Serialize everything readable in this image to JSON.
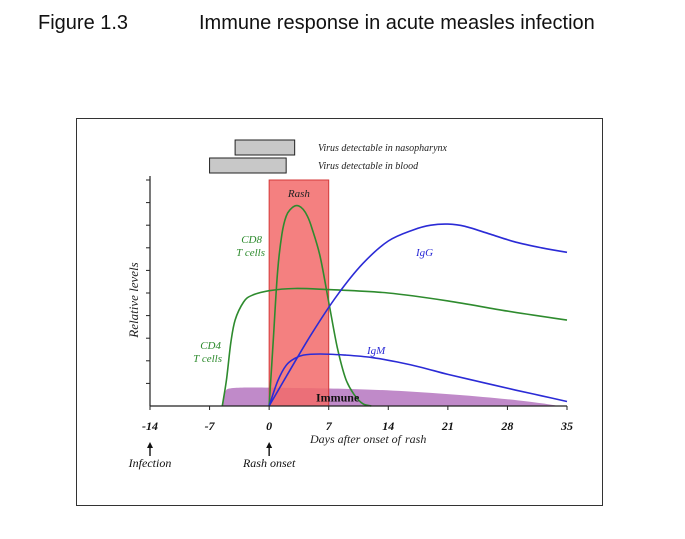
{
  "figure": {
    "number": "Figure 1.3",
    "title": "Immune response in acute measles infection"
  },
  "chart_data": {
    "type": "line",
    "xlabel_prefix": "Days after onset of",
    "xlabel_suffix": "rash",
    "ylabel": "Relative levels",
    "xlim": [
      -14,
      35
    ],
    "ylim": [
      0,
      10
    ],
    "x_ticks": [
      "-14",
      "-7",
      "0",
      "7",
      "14",
      "21",
      "28",
      "35"
    ],
    "x_tick_values": [
      -14,
      -7,
      0,
      7,
      14,
      21,
      28,
      35
    ],
    "y_tick_count": 10,
    "colors": {
      "green": "#2e8b2e",
      "blue": "#2b2bd6",
      "rash_fill": "#f26a6a",
      "rash_stroke": "#d43a3a",
      "immune_fill": "#c08ac9",
      "bar_fill": "#c8c8c8",
      "axis": "#222222"
    },
    "bars": [
      {
        "label": "Virus detectable in nasopharynx",
        "start": -4,
        "end": 3
      },
      {
        "label": "Virus detectable in blood",
        "start": -7,
        "end": 2
      }
    ],
    "rash_band": {
      "label": "Rash",
      "start": 0,
      "end": 7
    },
    "immune_band": {
      "label": "Immune",
      "points": [
        [
          -5.5,
          0
        ],
        [
          -5.2,
          0.6
        ],
        [
          -4,
          0.8
        ],
        [
          2,
          0.8
        ],
        [
          10,
          0.75
        ],
        [
          16,
          0.65
        ],
        [
          22,
          0.5
        ],
        [
          28,
          0.3
        ],
        [
          32,
          0.12
        ],
        [
          34,
          0
        ]
      ]
    },
    "series": [
      {
        "name": "CD8 T cells",
        "label_line1": "CD8",
        "label_line2": "T cells",
        "color": "green",
        "points": [
          [
            0,
            0
          ],
          [
            0.5,
            3
          ],
          [
            1,
            6
          ],
          [
            1.5,
            7.6
          ],
          [
            2,
            8.4
          ],
          [
            2.5,
            8.7
          ],
          [
            3,
            8.85
          ],
          [
            3.5,
            8.85
          ],
          [
            4,
            8.7
          ],
          [
            4.5,
            8.4
          ],
          [
            5,
            7.9
          ],
          [
            6,
            6.6
          ],
          [
            7,
            4.6
          ],
          [
            8,
            2.6
          ],
          [
            9,
            1.2
          ],
          [
            10,
            0.5
          ],
          [
            11,
            0.1
          ],
          [
            12,
            0
          ]
        ]
      },
      {
        "name": "CD4 T cells",
        "label_line1": "CD4",
        "label_line2": "T cells",
        "color": "green",
        "points": [
          [
            -5.5,
            0
          ],
          [
            -5,
            1.2
          ],
          [
            -4.5,
            2.8
          ],
          [
            -4,
            3.8
          ],
          [
            -3,
            4.6
          ],
          [
            -2,
            4.9
          ],
          [
            0,
            5.1
          ],
          [
            3,
            5.2
          ],
          [
            7,
            5.15
          ],
          [
            14,
            5.0
          ],
          [
            21,
            4.65
          ],
          [
            28,
            4.2
          ],
          [
            35,
            3.8
          ]
        ]
      },
      {
        "name": "IgG",
        "label": "IgG",
        "color": "blue",
        "points": [
          [
            0,
            0
          ],
          [
            2,
            1.3
          ],
          [
            5,
            3.2
          ],
          [
            8,
            4.9
          ],
          [
            11,
            6.3
          ],
          [
            14,
            7.3
          ],
          [
            17,
            7.8
          ],
          [
            19,
            8.0
          ],
          [
            21,
            8.05
          ],
          [
            23,
            7.95
          ],
          [
            26,
            7.6
          ],
          [
            29,
            7.25
          ],
          [
            32,
            7.0
          ],
          [
            35,
            6.8
          ]
        ]
      },
      {
        "name": "IgM",
        "label": "IgM",
        "color": "blue",
        "points": [
          [
            0,
            0
          ],
          [
            1,
            1.1
          ],
          [
            2,
            1.8
          ],
          [
            3,
            2.1
          ],
          [
            4,
            2.25
          ],
          [
            6,
            2.3
          ],
          [
            9,
            2.25
          ],
          [
            12,
            2.15
          ],
          [
            15,
            1.95
          ],
          [
            18,
            1.7
          ],
          [
            21,
            1.4
          ],
          [
            25,
            1.05
          ],
          [
            29,
            0.7
          ],
          [
            32,
            0.45
          ],
          [
            35,
            0.2
          ]
        ]
      }
    ],
    "events": [
      {
        "label": "Infection",
        "x": -14
      },
      {
        "label": "Rash onset",
        "x": 0
      }
    ]
  }
}
